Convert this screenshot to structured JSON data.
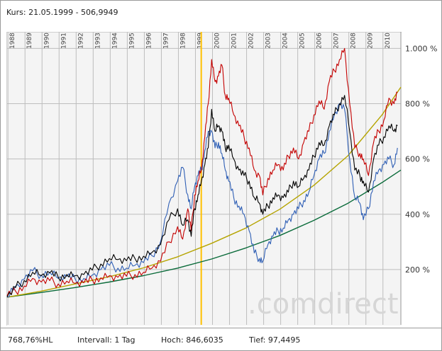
{
  "header": {
    "title": "Kurs: 21.05.1999 - 506,9949"
  },
  "footer": {
    "perf": "768,76%HL",
    "interval": "Intervall: 1 Tag",
    "high": "Hoch: 846,6035",
    "low": "Tief: 97,4495"
  },
  "watermark": ".comdirect",
  "colors": {
    "red": "#c40000",
    "black": "#000000",
    "blue": "#2f5fb5",
    "olive": "#b5a400",
    "green": "#0a6b3a",
    "marker": "#ffc000"
  },
  "chart_data": {
    "type": "line",
    "x_ticks": [
      "1988",
      "1989",
      "1990",
      "1991",
      "1992",
      "1993",
      "1994",
      "1995",
      "1996",
      "1997",
      "1998",
      "1999",
      "2000",
      "2001",
      "2002",
      "2003",
      "2004",
      "2005",
      "2006",
      "2007",
      "2008",
      "2009",
      "2010"
    ],
    "y_ticks": [
      "200 %",
      "400 %",
      "600 %",
      "800 %",
      "1.000 %"
    ],
    "ylim": [
      0,
      1060
    ],
    "xlim": [
      1988.0,
      2011.1
    ],
    "marker_x": 1999.39,
    "series": [
      {
        "color": "red",
        "x": [
          1988.0,
          1988.5,
          1989.0,
          1989.5,
          1990.0,
          1990.5,
          1991.0,
          1991.5,
          1992.0,
          1992.5,
          1993.0,
          1993.5,
          1994.0,
          1994.5,
          1995.0,
          1995.5,
          1996.0,
          1996.5,
          1997.0,
          1997.5,
          1998.0,
          1998.3,
          1998.6,
          1998.8,
          1999.0,
          1999.2,
          1999.4,
          1999.6,
          1999.8,
          2000.0,
          2000.2,
          2000.4,
          2000.6,
          2000.8,
          2001.0,
          2001.3,
          2001.6,
          2001.9,
          2002.2,
          2002.5,
          2002.8,
          2003.0,
          2003.3,
          2003.6,
          2003.9,
          2004.2,
          2004.5,
          2004.8,
          2005.1,
          2005.4,
          2005.7,
          2006.0,
          2006.3,
          2006.6,
          2006.9,
          2007.2,
          2007.5,
          2007.8,
          2008.1,
          2008.4,
          2008.7,
          2008.9,
          2009.2,
          2009.5,
          2009.8,
          2010.1,
          2010.4,
          2010.7,
          2010.9
        ],
        "y": [
          105,
          122,
          140,
          168,
          155,
          160,
          148,
          158,
          150,
          152,
          162,
          170,
          178,
          172,
          176,
          182,
          190,
          205,
          230,
          300,
          355,
          310,
          420,
          340,
          470,
          520,
          560,
          680,
          800,
          960,
          880,
          900,
          940,
          830,
          820,
          760,
          720,
          680,
          640,
          560,
          540,
          470,
          530,
          560,
          580,
          560,
          610,
          640,
          600,
          660,
          700,
          760,
          810,
          780,
          880,
          920,
          960,
          1000,
          800,
          640,
          620,
          600,
          540,
          660,
          700,
          740,
          820,
          800,
          840
        ]
      },
      {
        "color": "black",
        "x": [
          1988.0,
          1988.5,
          1989.0,
          1989.5,
          1990.0,
          1990.5,
          1991.0,
          1991.5,
          1992.0,
          1992.5,
          1993.0,
          1993.5,
          1994.0,
          1994.5,
          1995.0,
          1995.5,
          1996.0,
          1996.5,
          1997.0,
          1997.5,
          1998.0,
          1998.3,
          1998.6,
          1998.8,
          1999.0,
          1999.2,
          1999.4,
          1999.6,
          1999.8,
          2000.0,
          2000.2,
          2000.4,
          2000.6,
          2000.8,
          2001.0,
          2001.3,
          2001.6,
          2001.9,
          2002.2,
          2002.5,
          2002.8,
          2003.0,
          2003.3,
          2003.6,
          2003.9,
          2004.2,
          2004.5,
          2004.8,
          2005.1,
          2005.4,
          2005.7,
          2006.0,
          2006.3,
          2006.6,
          2006.9,
          2007.2,
          2007.5,
          2007.8,
          2008.1,
          2008.4,
          2008.7,
          2008.9,
          2009.2,
          2009.5,
          2009.8,
          2010.1,
          2010.4,
          2010.7,
          2010.9
        ],
        "y": [
          100,
          135,
          160,
          190,
          178,
          188,
          172,
          182,
          178,
          182,
          198,
          220,
          240,
          236,
          232,
          240,
          248,
          262,
          290,
          380,
          420,
          360,
          380,
          320,
          420,
          470,
          520,
          580,
          640,
          780,
          700,
          720,
          700,
          640,
          650,
          600,
          560,
          540,
          520,
          460,
          440,
          400,
          430,
          460,
          470,
          460,
          480,
          520,
          500,
          530,
          560,
          610,
          660,
          650,
          720,
          760,
          800,
          830,
          700,
          560,
          540,
          520,
          480,
          600,
          650,
          680,
          720,
          700,
          720
        ]
      },
      {
        "color": "blue",
        "x": [
          1988.0,
          1988.5,
          1989.0,
          1989.5,
          1990.0,
          1990.5,
          1991.0,
          1991.5,
          1992.0,
          1992.5,
          1993.0,
          1993.5,
          1994.0,
          1994.5,
          1995.0,
          1995.5,
          1996.0,
          1996.5,
          1997.0,
          1997.5,
          1998.0,
          1998.3,
          1998.6,
          1998.8,
          1999.0,
          1999.2,
          1999.4,
          1999.6,
          1999.8,
          2000.0,
          2000.2,
          2000.4,
          2000.6,
          2000.8,
          2001.0,
          2001.3,
          2001.6,
          2001.9,
          2002.2,
          2002.5,
          2002.8,
          2003.0,
          2003.3,
          2003.6,
          2003.9,
          2004.2,
          2004.5,
          2004.8,
          2005.1,
          2005.4,
          2005.7,
          2006.0,
          2006.3,
          2006.6,
          2006.9,
          2007.2,
          2007.5,
          2007.8,
          2008.1,
          2008.4,
          2008.7,
          2008.9,
          2009.2,
          2009.5,
          2009.8,
          2010.1,
          2010.4,
          2010.7,
          2010.9
        ],
        "y": [
          100,
          140,
          165,
          195,
          180,
          190,
          168,
          175,
          165,
          168,
          180,
          200,
          215,
          205,
          205,
          215,
          225,
          250,
          300,
          440,
          520,
          570,
          470,
          420,
          500,
          540,
          560,
          630,
          700,
          700,
          640,
          660,
          620,
          560,
          520,
          460,
          430,
          400,
          340,
          260,
          240,
          230,
          290,
          320,
          340,
          350,
          380,
          400,
          420,
          450,
          480,
          540,
          600,
          620,
          700,
          760,
          800,
          780,
          600,
          460,
          440,
          380,
          420,
          520,
          560,
          580,
          600,
          580,
          640
        ]
      },
      {
        "color": "olive",
        "x": [
          1988,
          1990,
          1992,
          1994,
          1996,
          1998,
          2000,
          2002,
          2004,
          2006,
          2008,
          2010,
          2011.1
        ],
        "y": [
          100,
          122,
          148,
          174,
          206,
          246,
          295,
          350,
          418,
          505,
          612,
          760,
          860
        ]
      },
      {
        "color": "green",
        "x": [
          1988,
          1990,
          1992,
          1994,
          1996,
          1998,
          2000,
          2002,
          2004,
          2006,
          2008,
          2010,
          2011.1
        ],
        "y": [
          100,
          117,
          135,
          155,
          178,
          205,
          238,
          278,
          323,
          378,
          440,
          515,
          560
        ]
      }
    ]
  }
}
